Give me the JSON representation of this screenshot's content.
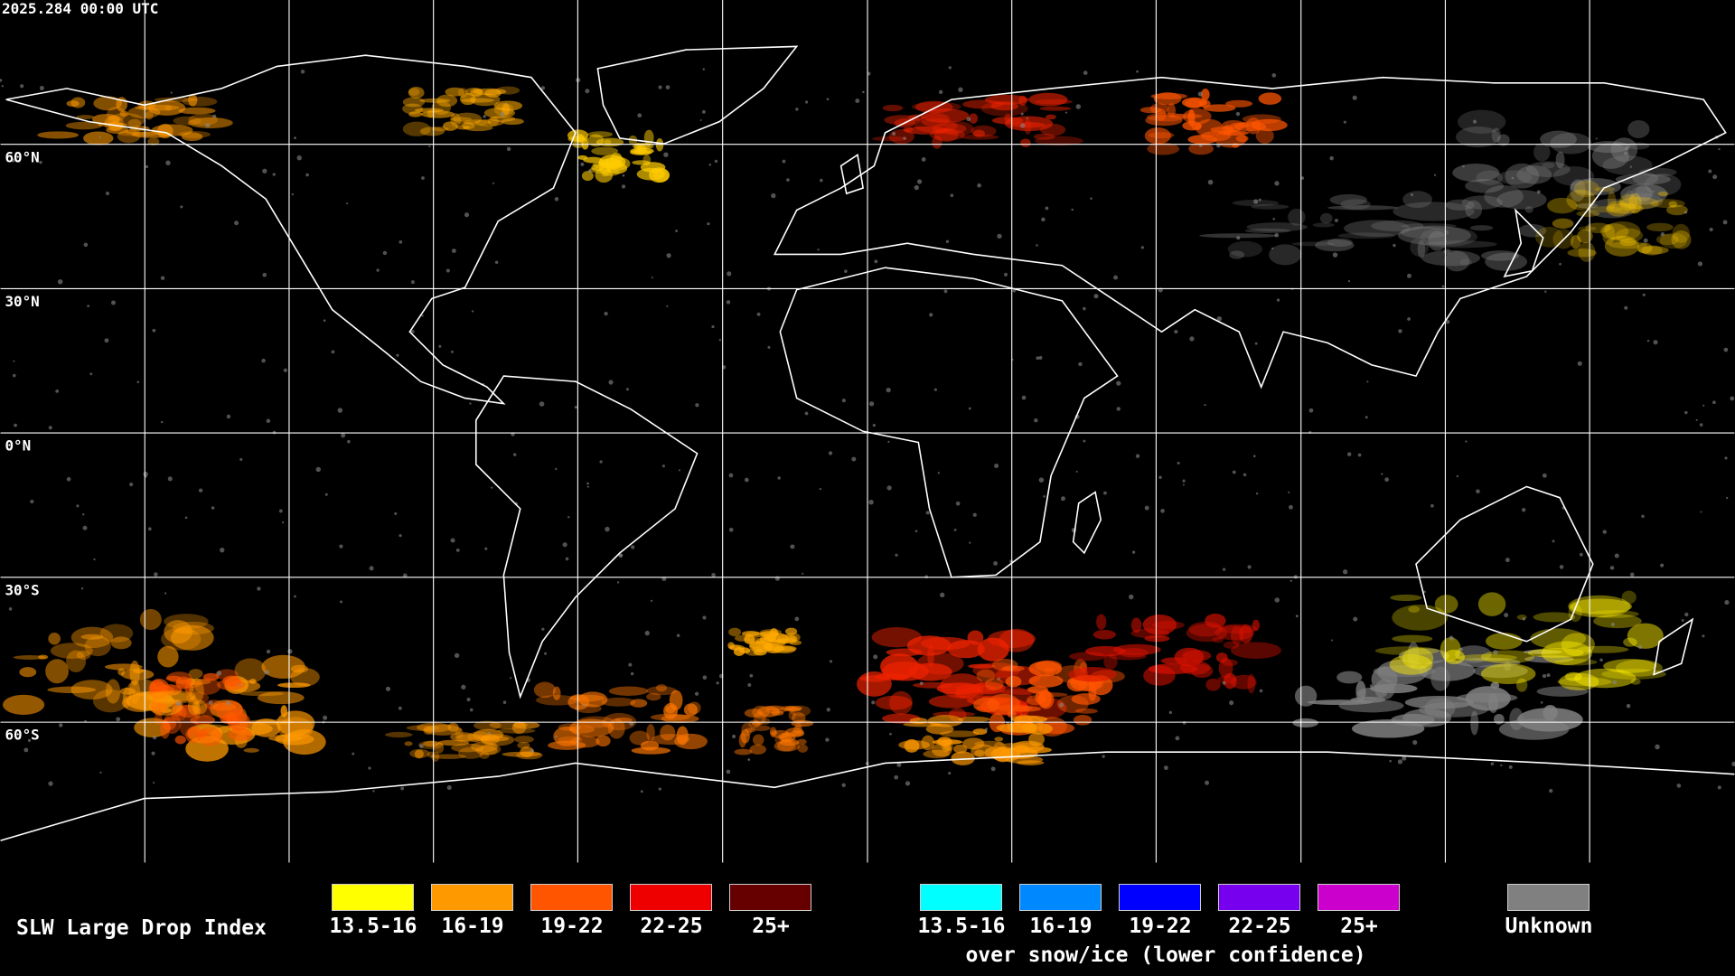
{
  "timestamp": "2025.284 00:00 UTC",
  "latitude_labels": [
    "60°N",
    "30°N",
    "0°N",
    "30°S",
    "60°S"
  ],
  "legend": {
    "title": "SLW Large Drop Index",
    "items": [
      {
        "label": "13.5-16",
        "color": "#ffff00"
      },
      {
        "label": "16-19",
        "color": "#ff9900"
      },
      {
        "label": "19-22",
        "color": "#ff5500"
      },
      {
        "label": "22-25",
        "color": "#ee0000"
      },
      {
        "label": "25+",
        "color": "#660000"
      }
    ],
    "snow_items": [
      {
        "label": "13.5-16",
        "color": "#00ffff"
      },
      {
        "label": "16-19",
        "color": "#0088ff"
      },
      {
        "label": "19-22",
        "color": "#0000ff"
      },
      {
        "label": "22-25",
        "color": "#7700ee"
      },
      {
        "label": "25+",
        "color": "#cc00cc"
      }
    ],
    "snow_caption": "over snow/ice (lower confidence)",
    "unknown": {
      "label": "Unknown",
      "color": "#808080"
    }
  }
}
